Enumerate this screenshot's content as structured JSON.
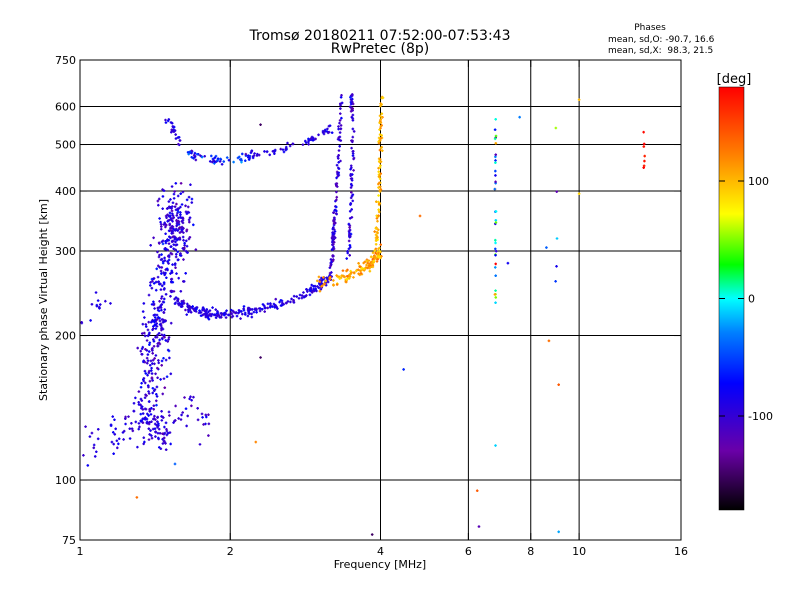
{
  "chart_data": {
    "type": "scatter",
    "title": "Tromsø 20180211 07:52:00-07:53:43",
    "subtitle": "RwPretec (8p)",
    "xlabel": "Frequency [MHz]",
    "ylabel": "Stationary phase Virtual Height [km]",
    "x_scale": "log",
    "y_scale": "log",
    "xlim": [
      1,
      16
    ],
    "ylim": [
      75,
      750
    ],
    "x_ticks": [
      1,
      2,
      4,
      6,
      8,
      10,
      16
    ],
    "x_tick_labels": [
      "1",
      "2",
      "4",
      "6",
      "8",
      "10",
      "16"
    ],
    "y_ticks": [
      75,
      100,
      200,
      300,
      400,
      500,
      600,
      750
    ],
    "y_tick_labels": [
      "75",
      "100",
      "200",
      "300",
      "400",
      "500",
      "600",
      "750"
    ],
    "v_gridlines": [
      2,
      4,
      6,
      8,
      10
    ],
    "h_gridlines": [
      100,
      200,
      300,
      400,
      500,
      600
    ],
    "grid": true,
    "stats": {
      "title": "Phases",
      "line1": "mean, sd,O: -90.7, 16.6",
      "line2": "mean, sd,X:  98.3, 21.5"
    },
    "colorbar": {
      "label": "[deg]",
      "min": -180,
      "max": 180,
      "ticks": [
        100,
        0,
        -100
      ],
      "tick_labels": [
        "100",
        "0",
        "-100"
      ]
    },
    "traces": [
      {
        "kind": "band",
        "f": [
          1.0,
          1.2,
          1.35,
          1.45,
          1.5
        ],
        "h": [
          118,
          125,
          135,
          128,
          122
        ],
        "spread": 0.05,
        "n": 120,
        "phase": [
          -95,
          10
        ]
      },
      {
        "kind": "band",
        "f": [
          1.5,
          1.6,
          1.7,
          1.8
        ],
        "h": [
          130,
          135,
          140,
          132
        ],
        "spread": 0.05,
        "n": 30,
        "phase": [
          -100,
          12
        ]
      },
      {
        "kind": "band",
        "f": [
          1.35,
          1.4,
          1.45,
          1.5,
          1.55,
          1.6
        ],
        "h": [
          140,
          180,
          230,
          300,
          360,
          330
        ],
        "spread": 0.08,
        "n": 500,
        "phase": [
          -95,
          15
        ]
      },
      {
        "kind": "band",
        "f": [
          1.55,
          1.65,
          1.8,
          2.0,
          2.2,
          2.5,
          2.8,
          3.0,
          3.15
        ],
        "h": [
          238,
          228,
          222,
          222,
          225,
          232,
          243,
          253,
          262
        ],
        "spread": 0.012,
        "n": 260,
        "phase": [
          -92,
          10
        ]
      },
      {
        "kind": "band",
        "f": [
          1.0,
          1.05,
          1.1,
          1.2
        ],
        "h": [
          215,
          228,
          238,
          240
        ],
        "spread": 0.02,
        "n": 12,
        "phase": [
          -90,
          8
        ]
      },
      {
        "kind": "band",
        "f": [
          1.5,
          1.55,
          1.62
        ],
        "h": [
          560,
          520,
          490
        ],
        "spread": 0.015,
        "n": 25,
        "phase": [
          -88,
          12
        ]
      },
      {
        "kind": "band",
        "f": [
          1.62,
          1.75,
          1.9,
          2.1,
          2.2
        ],
        "h": [
          485,
          470,
          462,
          470,
          472
        ],
        "spread": 0.012,
        "n": 60,
        "phase": [
          -70,
          25
        ]
      },
      {
        "kind": "band",
        "f": [
          2.2,
          2.5,
          2.8,
          3.0,
          3.2
        ],
        "h": [
          475,
          487,
          505,
          522,
          540
        ],
        "spread": 0.01,
        "n": 60,
        "phase": [
          -92,
          10
        ]
      },
      {
        "kind": "band",
        "f": [
          3.18,
          3.22,
          3.28,
          3.35
        ],
        "h": [
          262,
          320,
          430,
          640
        ],
        "spread": 0.01,
        "n": 120,
        "phase": [
          -100,
          14
        ]
      },
      {
        "kind": "band",
        "f": [
          3.45,
          3.5,
          3.52,
          3.5
        ],
        "h": [
          290,
          400,
          520,
          640
        ],
        "spread": 0.01,
        "n": 90,
        "phase": [
          -95,
          14
        ]
      },
      {
        "kind": "band",
        "f": [
          3.0,
          3.3,
          3.6,
          3.85,
          4.0
        ],
        "h": [
          258,
          262,
          270,
          285,
          300
        ],
        "spread": 0.015,
        "n": 130,
        "phase": [
          110,
          14
        ]
      },
      {
        "kind": "band",
        "f": [
          3.9,
          3.98,
          4.0,
          4.02
        ],
        "h": [
          300,
          400,
          520,
          630
        ],
        "spread": 0.01,
        "n": 90,
        "phase": [
          105,
          14
        ]
      },
      {
        "kind": "band",
        "f": [
          6.8,
          6.8,
          6.8
        ],
        "h": [
          230,
          400,
          580
        ],
        "spread": 0.005,
        "n": 35,
        "phase": [
          0,
          70
        ]
      },
      {
        "kind": "band",
        "f": [
          13.5,
          13.5
        ],
        "h": [
          430,
          540
        ],
        "spread": 0.005,
        "n": 7,
        "phase": [
          175,
          5
        ]
      },
      {
        "kind": "band",
        "f": [
          9.0,
          9.0
        ],
        "h": [
          250,
          600
        ],
        "spread": 0.005,
        "n": 5,
        "phase": [
          -60,
          40
        ]
      }
    ],
    "points": [
      {
        "f": 2.3,
        "h": 550,
        "phase": -150
      },
      {
        "f": 2.3,
        "h": 180,
        "phase": -150
      },
      {
        "f": 2.25,
        "h": 120,
        "phase": 120
      },
      {
        "f": 4.45,
        "h": 170,
        "phase": -60
      },
      {
        "f": 4.8,
        "h": 355,
        "phase": 130
      },
      {
        "f": 6.25,
        "h": 95,
        "phase": 140
      },
      {
        "f": 6.3,
        "h": 80,
        "phase": -120
      },
      {
        "f": 6.8,
        "h": 118,
        "phase": -10
      },
      {
        "f": 7.6,
        "h": 570,
        "phase": -30
      },
      {
        "f": 7.2,
        "h": 283,
        "phase": -80
      },
      {
        "f": 8.6,
        "h": 305,
        "phase": -40
      },
      {
        "f": 8.7,
        "h": 195,
        "phase": 130
      },
      {
        "f": 9.1,
        "h": 158,
        "phase": 140
      },
      {
        "f": 9.1,
        "h": 78,
        "phase": -20
      },
      {
        "f": 10.0,
        "h": 395,
        "phase": 90
      },
      {
        "f": 10.0,
        "h": 620,
        "phase": 100
      },
      {
        "f": 1.3,
        "h": 92,
        "phase": 130
      },
      {
        "f": 1.55,
        "h": 108,
        "phase": -40
      },
      {
        "f": 3.85,
        "h": 77,
        "phase": -150
      },
      {
        "f": 1.05,
        "h": 215,
        "phase": -80
      }
    ]
  }
}
